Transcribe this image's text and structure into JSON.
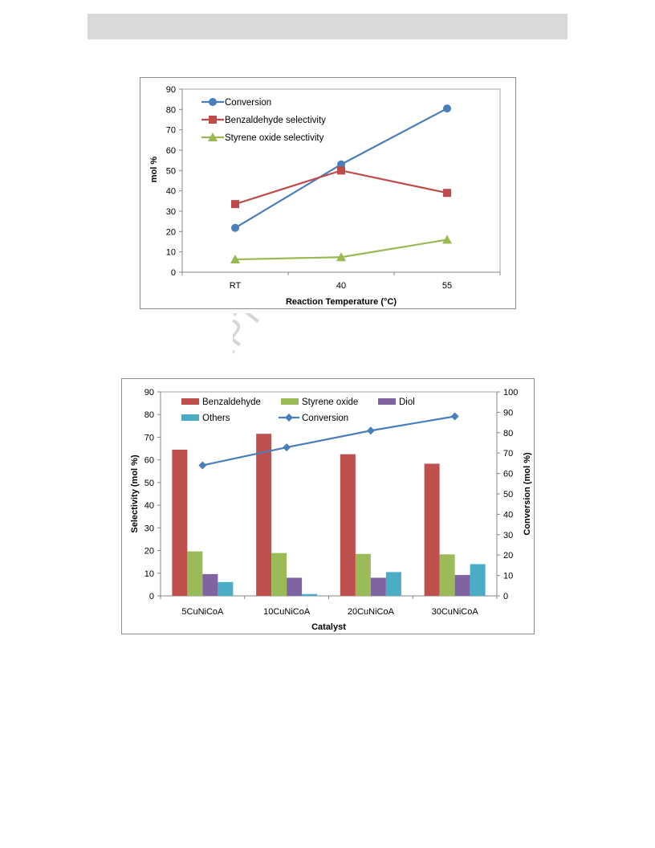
{
  "watermark": {
    "text": "ACCEPTED MANUSCRIPT",
    "color": "#d6d6d6"
  },
  "chart_data": [
    {
      "type": "line",
      "title": "",
      "xlabel": "Reaction Temperature (°C)",
      "ylabel": "mol %",
      "categories": [
        "RT",
        "40",
        "55"
      ],
      "ylim": [
        0,
        90
      ],
      "ytick_step": 10,
      "grid": false,
      "legend_position": "top-left",
      "series": [
        {
          "name": "Conversion",
          "values": [
            21.8,
            53,
            80.5
          ],
          "color": "#4a7ebb",
          "marker": "circle"
        },
        {
          "name": "Benzaldehyde selectivity",
          "values": [
            33.5,
            50,
            39
          ],
          "color": "#be4b48",
          "marker": "square"
        },
        {
          "name": "Styrene oxide selectivity",
          "values": [
            6.3,
            7.4,
            16
          ],
          "color": "#98b954",
          "marker": "triangle"
        }
      ]
    },
    {
      "type": "bar",
      "title": "",
      "xlabel": "Catalyst",
      "ylabel": "Selectivity (mol %)",
      "y2label": "Conversion (mol %)",
      "categories": [
        "5CuNiCoA",
        "10CuNiCoA",
        "20CuNiCoA",
        "30CuNiCoA"
      ],
      "ylim": [
        0,
        90
      ],
      "y2lim": [
        0,
        100
      ],
      "ytick_step": 10,
      "y2tick_step": 10,
      "grid": false,
      "legend_position": "top",
      "series": [
        {
          "name": "Benzaldehyde",
          "values": [
            64.5,
            71.5,
            62.5,
            58.3
          ],
          "color": "#c0504d",
          "axis": "left"
        },
        {
          "name": "Styrene oxide",
          "values": [
            19.6,
            18.9,
            18.5,
            18.3
          ],
          "color": "#9bbb59",
          "axis": "left"
        },
        {
          "name": "Diol",
          "values": [
            9.6,
            8,
            8,
            9.2
          ],
          "color": "#8064a2",
          "axis": "left"
        },
        {
          "name": "Others",
          "values": [
            6.1,
            0.8,
            10.5,
            14
          ],
          "color": "#4bacc6",
          "axis": "left"
        },
        {
          "name": "Conversion",
          "values": [
            64,
            72.8,
            81,
            88
          ],
          "color": "#4a7ebb",
          "axis": "right",
          "render": "line",
          "marker": "diamond"
        }
      ]
    }
  ]
}
